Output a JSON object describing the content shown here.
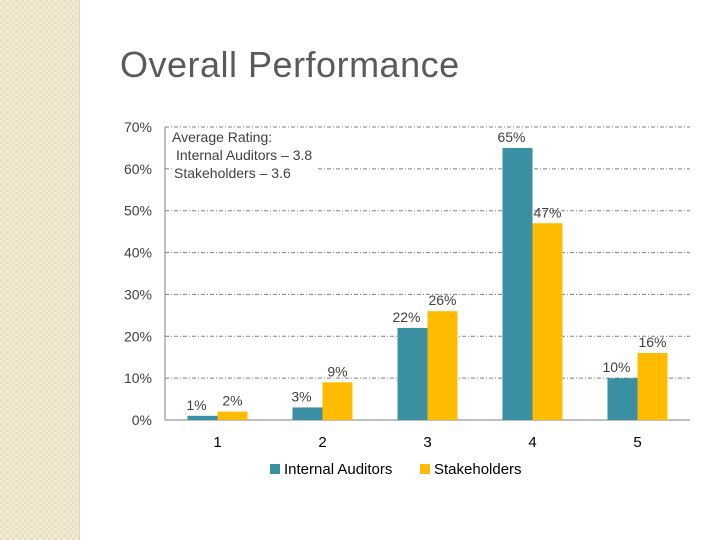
{
  "title": "Overall Performance",
  "annotation": {
    "line1": "Average Rating:",
    "line2": "Internal Auditors – 3.8",
    "line3": "Stakeholders – 3.6"
  },
  "colors": {
    "internal": "#3a8fa3",
    "stakeholders": "#ffbb00",
    "grid": "#808080",
    "text": "#404040"
  },
  "chart_data": {
    "type": "bar",
    "categories": [
      "1",
      "2",
      "3",
      "4",
      "5"
    ],
    "series": [
      {
        "name": "Internal Auditors",
        "values": [
          1,
          3,
          22,
          65,
          10
        ],
        "labels": [
          "1%",
          "3%",
          "22%",
          "65%",
          "10%"
        ]
      },
      {
        "name": "Stakeholders",
        "values": [
          2,
          9,
          26,
          47,
          16
        ],
        "labels": [
          "2%",
          "9%",
          "26%",
          "47%",
          "16%"
        ]
      }
    ],
    "ylim": [
      0,
      70
    ],
    "yticks": [
      0,
      10,
      20,
      30,
      40,
      50,
      60,
      70
    ],
    "ytick_labels": [
      "0%",
      "10%",
      "20%",
      "30%",
      "40%",
      "50%",
      "60%",
      "70%"
    ],
    "grid": true,
    "legend_position": "bottom",
    "xlabel": "",
    "ylabel": ""
  }
}
